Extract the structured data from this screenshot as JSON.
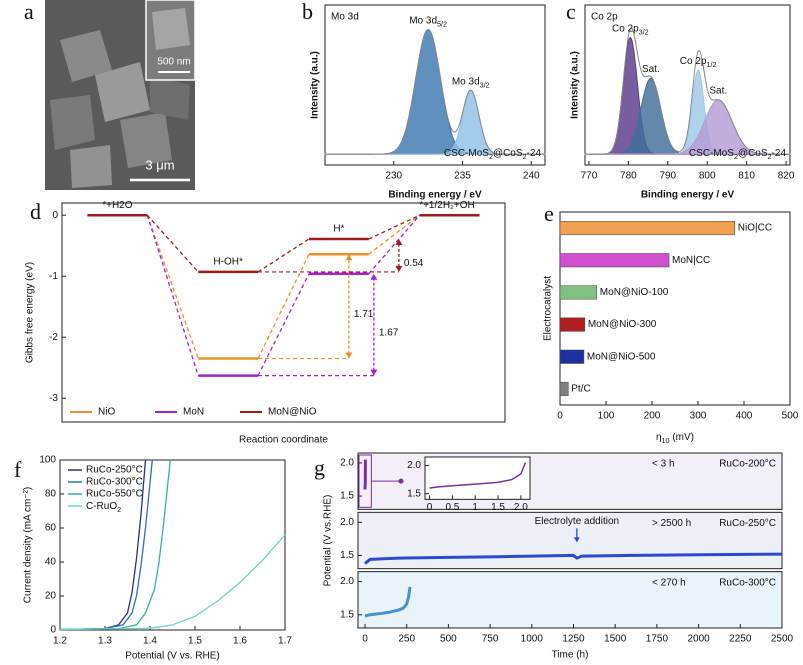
{
  "panel_labels": [
    "a",
    "b",
    "c",
    "d",
    "e",
    "f",
    "g"
  ],
  "image": {
    "scale_labels": [
      "500 nm",
      "3 μm"
    ]
  },
  "chart_data": [
    {
      "type": "xps",
      "title": "Mo 3d",
      "xlabel": "Binding energy / eV",
      "ylabel": "Intensity (a.u.)",
      "sample": [
        "CSC-MoS",
        "2",
        "@CoS",
        "2",
        "-24"
      ],
      "xlim": [
        225,
        241
      ],
      "xticks": [
        230,
        235,
        240
      ],
      "ylim": [
        -0.08,
        1.1
      ],
      "peaks": [
        {
          "name": [
            "Mo 3d",
            "5/2"
          ],
          "center": 232.5,
          "height": 0.92,
          "width": 0.9,
          "color": "#3d78b0"
        },
        {
          "name": [
            "Mo 3d",
            "3/2"
          ],
          "center": 235.6,
          "height": 0.47,
          "width": 0.6,
          "color": "#8fc0e6"
        }
      ]
    },
    {
      "type": "xps",
      "title": "Co 2p",
      "xlabel": "Binding energy / eV",
      "ylabel": "Intensity (a.u.)",
      "sample": [
        "CSC-MoS",
        "2",
        "@CoS",
        "2",
        "-24"
      ],
      "xlim": [
        769,
        821
      ],
      "xticks": [
        770,
        780,
        790,
        800,
        810,
        820
      ],
      "ylim": [
        -0.08,
        1.1
      ],
      "peaks": [
        {
          "name": [
            "Co 2p",
            "3/2"
          ],
          "center": 780.5,
          "height": 0.86,
          "width": 1.8,
          "color": "#5a3a8a"
        },
        {
          "name": "Sat.",
          "center": 785.7,
          "height": 0.56,
          "width": 2.5,
          "color": "#3f6f99"
        },
        {
          "name": [
            "Co 2p",
            "1/2"
          ],
          "center": 797.7,
          "height": 0.62,
          "width": 1.5,
          "color": "#9fc8e8"
        },
        {
          "name": "Sat.",
          "center": 802.8,
          "height": 0.4,
          "width": 3.5,
          "color": "#b49cd6"
        }
      ]
    },
    {
      "type": "energy_diagram",
      "ylabel": "Gibbs free energy (eV)",
      "xlabel": "Reaction coordinate",
      "categories": [
        "*+H2O",
        "H-OH*",
        "H*",
        "*+1/2H₂+OH⁻"
      ],
      "ylim": [
        -3.39,
        0.2
      ],
      "yticks": [
        0,
        -1,
        -2,
        -3
      ],
      "series": [
        {
          "name": "NiO",
          "color": "#e8922a",
          "values": [
            0,
            -2.35,
            -0.64,
            0
          ]
        },
        {
          "name": "MoN",
          "color": "#a323c8",
          "values": [
            0,
            -2.63,
            -0.96,
            0
          ]
        },
        {
          "name": "MoN@NiO",
          "color": "#9e1b1b",
          "values": [
            0,
            -0.93,
            -0.39,
            0
          ]
        }
      ],
      "annotations": [
        "1.71",
        "1.67",
        "0.54"
      ]
    },
    {
      "type": "barh",
      "ylabel": "Electrocatalyst",
      "xlabel": [
        "η",
        "10",
        " (mV)"
      ],
      "xlim": [
        0,
        500
      ],
      "xticks": [
        0,
        100,
        200,
        300,
        400,
        500
      ],
      "categories": [
        "NiO|CC",
        "MoN|CC",
        "MoN@NiO-100",
        "MoN@NiO-300",
        "MoN@NiO-500",
        "Pt/C"
      ],
      "values": [
        380,
        237,
        80,
        54,
        52,
        18
      ],
      "colors": [
        "#f0a050",
        "#d050d0",
        "#80c080",
        "#b02020",
        "#2030a0",
        "#808080"
      ]
    },
    {
      "type": "line",
      "ylabel": "Current density (mA cm⁻²)",
      "xlabel": "Potential (V vs. RHE)",
      "legend": "upper left",
      "xlim": [
        1.2,
        1.7
      ],
      "xticks": [
        1.2,
        1.3,
        1.4,
        1.5,
        1.6,
        1.7
      ],
      "ylim": [
        0,
        100
      ],
      "yticks": [
        0,
        20,
        40,
        60,
        80,
        100
      ],
      "series": [
        {
          "name": "RuCo-250°C",
          "color": "#2b2d8e",
          "x": [
            1.2,
            1.3,
            1.33,
            1.35,
            1.36,
            1.37,
            1.38,
            1.39
          ],
          "values": [
            0.3,
            0.8,
            3,
            10,
            22,
            42,
            68,
            100
          ]
        },
        {
          "name": "RuCo-300°C",
          "color": "#2f6eb5",
          "x": [
            1.2,
            1.3,
            1.34,
            1.36,
            1.37,
            1.38,
            1.39,
            1.405
          ],
          "values": [
            0.3,
            0.8,
            3,
            10,
            20,
            38,
            60,
            100
          ]
        },
        {
          "name": "RuCo-550°C",
          "color": "#35b0a0",
          "x": [
            1.2,
            1.33,
            1.37,
            1.39,
            1.41,
            1.42,
            1.43,
            1.445
          ],
          "values": [
            0.3,
            0.8,
            3,
            10,
            24,
            40,
            62,
            100
          ]
        },
        {
          "name": [
            "C-RuO",
            "2"
          ],
          "color": "#6fd4c4",
          "x": [
            1.2,
            1.4,
            1.45,
            1.5,
            1.55,
            1.6,
            1.65,
            1.7
          ],
          "values": [
            0.3,
            1,
            3,
            8,
            17,
            28,
            41,
            56
          ]
        }
      ]
    },
    {
      "type": "stacked_line",
      "ylabel": "Potential (V vs.RHE)",
      "xlabel": "Time (h)",
      "xlim": [
        -42,
        2500
      ],
      "xticks": [
        0,
        250,
        500,
        750,
        1000,
        1250,
        1500,
        1750,
        2000,
        2250,
        2500
      ],
      "ylim": [
        1.3,
        2.15
      ],
      "yticks": [
        1.5,
        {
          "value": 2,
          "label": "2.0"
        }
      ],
      "panels": [
        {
          "name": "RuCo-200°C",
          "note": "< 3 h",
          "color": "#7b2fa0",
          "background": "#f3eef8",
          "x": [
            0,
            0.2,
            0.5,
            1,
            1.5,
            1.8,
            2,
            2.1
          ],
          "values": [
            1.6,
            1.62,
            1.64,
            1.67,
            1.7,
            1.75,
            1.85,
            2.05
          ]
        },
        {
          "name": "RuCo-250°C",
          "note": "> 2500 h",
          "color": "#2a4ad0",
          "background": "#eef0f8",
          "x": [
            0,
            30,
            200,
            500,
            800,
            1000,
            1250,
            1270,
            1300,
            1600,
            2000,
            2500
          ],
          "values": [
            1.38,
            1.44,
            1.46,
            1.47,
            1.48,
            1.49,
            1.5,
            1.46,
            1.49,
            1.5,
            1.51,
            1.52
          ]
        },
        {
          "name": "RuCo-300°C",
          "note": "< 270 h",
          "color": "#4a90d0",
          "background": "#e9f4fa",
          "x": [
            0,
            30,
            100,
            150,
            200,
            230,
            250,
            262,
            270
          ],
          "values": [
            1.48,
            1.5,
            1.52,
            1.54,
            1.57,
            1.6,
            1.66,
            1.78,
            1.92
          ]
        }
      ],
      "annotation": {
        "text": "Electrolyte addition",
        "x": 1270
      },
      "inset": {
        "panel": 0,
        "xlim": [
          -0.1,
          2.2
        ],
        "xticks": [
          0,
          0.5,
          1,
          1.5,
          {
            "value": 2,
            "label": "2.0"
          }
        ],
        "ylim": [
          1.4,
          2.15
        ],
        "yticks": [
          1.5,
          {
            "value": 2,
            "label": "2.0"
          }
        ]
      }
    }
  ]
}
